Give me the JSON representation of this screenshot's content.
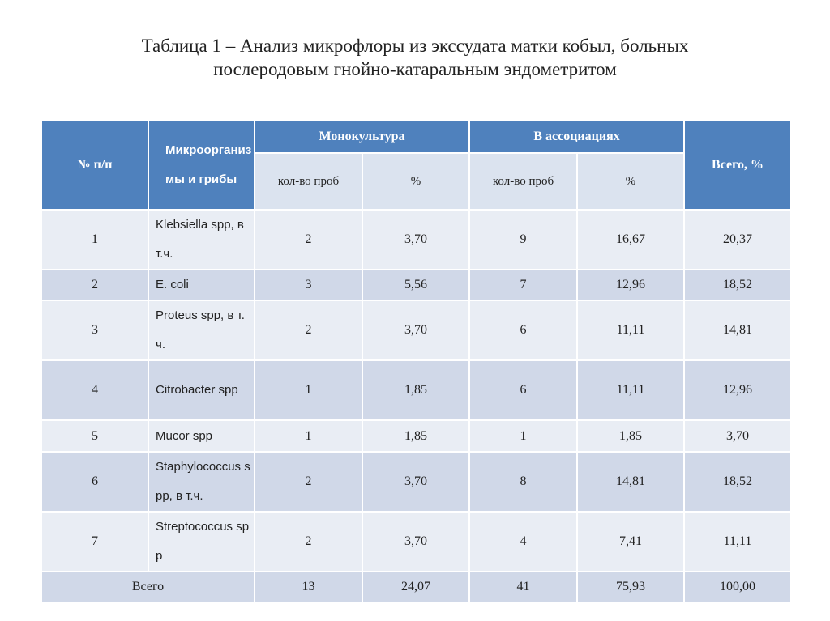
{
  "title_lines": [
    "Таблица 1 – Анализ микрофлоры из экссудата матки кобыл, больных",
    "послеродовым гнойно-катаральным эндометритом"
  ],
  "table": {
    "header": {
      "number": "№ п/п",
      "organism": "Микроорганизмы и грибы",
      "mono": "Монокультура",
      "assoc": "В ассоциациях",
      "total": "Всего, %",
      "sub": [
        "кол-во проб",
        "%",
        "кол-во проб",
        "%"
      ]
    },
    "rows": [
      [
        "1",
        "Klebsiella spp, в т.ч.",
        "2",
        "3,70",
        "9",
        "16,67",
        "20,37"
      ],
      [
        "2",
        "E. coli",
        "3",
        "5,56",
        "7",
        "12,96",
        "18,52"
      ],
      [
        "3",
        "Proteus spp, в т.ч.",
        "2",
        "3,70",
        "6",
        "11,11",
        "14,81"
      ],
      [
        "4",
        "Citrobacter spp",
        "1",
        "1,85",
        "6",
        "11,11",
        "12,96"
      ],
      [
        "5",
        "Mucor spp",
        "1",
        "1,85",
        "1",
        "1,85",
        "3,70"
      ],
      [
        "6",
        "Staphylococcus spp, в т.ч.",
        "2",
        "3,70",
        "8",
        "14,81",
        "18,52"
      ],
      [
        "7",
        "Streptococcus spp",
        "2",
        "3,70",
        "4",
        "7,41",
        "11,11"
      ]
    ],
    "total_row": [
      "Всего",
      "13",
      "24,07",
      "41",
      "75,93",
      "100,00"
    ]
  }
}
